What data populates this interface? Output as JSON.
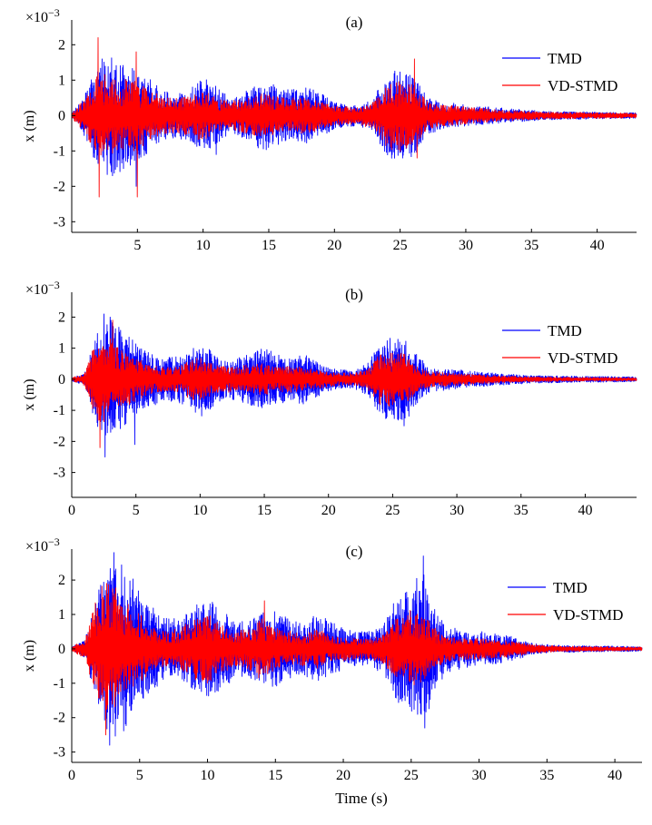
{
  "chart_data": [
    {
      "type": "line",
      "panel_label": "(a)",
      "exponent_label": "×10",
      "exponent_power": "−3",
      "xlabel": "",
      "ylabel": "x (m)",
      "xlim": [
        0,
        43
      ],
      "ylim": [
        -3.3,
        2.7
      ],
      "x_ticks": [
        5,
        10,
        15,
        20,
        25,
        30,
        35,
        40
      ],
      "y_ticks": [
        -3,
        -2,
        -1,
        0,
        1,
        2
      ],
      "legend_position": "top-right",
      "series": [
        {
          "name": "TMD",
          "color": "#0000ff",
          "envelope": [
            [
              0,
              0.05
            ],
            [
              1,
              0.6
            ],
            [
              2,
              1.5
            ],
            [
              3,
              1.7
            ],
            [
              4,
              1.5
            ],
            [
              5,
              1.3
            ],
            [
              6,
              1.0
            ],
            [
              7,
              0.7
            ],
            [
              8,
              0.6
            ],
            [
              9,
              0.8
            ],
            [
              10,
              1.1
            ],
            [
              11,
              0.8
            ],
            [
              12,
              0.5
            ],
            [
              13,
              0.6
            ],
            [
              14,
              0.9
            ],
            [
              15,
              1.0
            ],
            [
              16,
              0.8
            ],
            [
              17,
              0.7
            ],
            [
              18,
              0.8
            ],
            [
              19,
              0.6
            ],
            [
              20,
              0.4
            ],
            [
              21,
              0.3
            ],
            [
              22,
              0.3
            ],
            [
              23,
              0.5
            ],
            [
              24,
              1.2
            ],
            [
              25,
              1.3
            ],
            [
              26,
              1.2
            ],
            [
              27,
              0.6
            ],
            [
              28,
              0.4
            ],
            [
              30,
              0.3
            ],
            [
              33,
              0.2
            ],
            [
              36,
              0.12
            ],
            [
              40,
              0.1
            ],
            [
              43,
              0.08
            ]
          ],
          "peaks": [
            [
              2.3,
              1.6
            ],
            [
              3.1,
              -1.7
            ],
            [
              4.9,
              -2.0
            ],
            [
              11.0,
              -1.1
            ],
            [
              24.4,
              -1.1
            ],
            [
              25.6,
              1.1
            ]
          ]
        },
        {
          "name": "VD-STMD",
          "color": "#ff0000",
          "envelope": [
            [
              0,
              0.05
            ],
            [
              1,
              0.5
            ],
            [
              2,
              1.2
            ],
            [
              3,
              1.1
            ],
            [
              4,
              1.0
            ],
            [
              5,
              1.0
            ],
            [
              6,
              0.7
            ],
            [
              7,
              0.5
            ],
            [
              8,
              0.5
            ],
            [
              9,
              0.6
            ],
            [
              10,
              0.7
            ],
            [
              11,
              0.5
            ],
            [
              12,
              0.4
            ],
            [
              13,
              0.5
            ],
            [
              14,
              0.6
            ],
            [
              15,
              0.6
            ],
            [
              16,
              0.5
            ],
            [
              17,
              0.5
            ],
            [
              18,
              0.5
            ],
            [
              19,
              0.4
            ],
            [
              20,
              0.3
            ],
            [
              21,
              0.25
            ],
            [
              22,
              0.25
            ],
            [
              23,
              0.4
            ],
            [
              24,
              0.9
            ],
            [
              25,
              1.0
            ],
            [
              26,
              0.9
            ],
            [
              27,
              0.4
            ],
            [
              28,
              0.3
            ],
            [
              30,
              0.25
            ],
            [
              33,
              0.15
            ],
            [
              36,
              0.1
            ],
            [
              40,
              0.08
            ],
            [
              43,
              0.06
            ]
          ],
          "peaks": [
            [
              2.0,
              2.2
            ],
            [
              2.1,
              -2.3
            ],
            [
              4.9,
              1.8
            ],
            [
              5.0,
              -2.3
            ],
            [
              26.1,
              1.6
            ],
            [
              26.3,
              -1.2
            ]
          ]
        }
      ]
    },
    {
      "type": "line",
      "panel_label": "(b)",
      "exponent_label": "×10",
      "exponent_power": "−3",
      "xlabel": "",
      "ylabel": "x (m)",
      "xlim": [
        0,
        44
      ],
      "ylim": [
        -3.8,
        2.8
      ],
      "x_ticks": [
        0,
        5,
        10,
        15,
        20,
        25,
        30,
        35,
        40
      ],
      "y_ticks": [
        -3,
        -2,
        -1,
        0,
        1,
        2
      ],
      "legend_position": "top-right",
      "series": [
        {
          "name": "TMD",
          "color": "#0000ff",
          "envelope": [
            [
              0,
              0.05
            ],
            [
              1,
              0.2
            ],
            [
              2,
              1.6
            ],
            [
              3,
              1.9
            ],
            [
              4,
              1.6
            ],
            [
              5,
              1.2
            ],
            [
              6,
              0.9
            ],
            [
              7,
              0.7
            ],
            [
              8,
              0.7
            ],
            [
              9,
              0.9
            ],
            [
              10,
              1.2
            ],
            [
              11,
              0.9
            ],
            [
              12,
              0.6
            ],
            [
              13,
              0.7
            ],
            [
              14,
              0.9
            ],
            [
              15,
              1.0
            ],
            [
              16,
              0.8
            ],
            [
              17,
              0.7
            ],
            [
              18,
              0.8
            ],
            [
              19,
              0.6
            ],
            [
              20,
              0.4
            ],
            [
              21,
              0.3
            ],
            [
              22,
              0.3
            ],
            [
              23,
              0.5
            ],
            [
              24,
              1.2
            ],
            [
              25,
              1.3
            ],
            [
              26,
              1.4
            ],
            [
              27,
              0.7
            ],
            [
              28,
              0.4
            ],
            [
              30,
              0.3
            ],
            [
              33,
              0.2
            ],
            [
              36,
              0.12
            ],
            [
              40,
              0.1
            ],
            [
              44,
              0.08
            ]
          ],
          "peaks": [
            [
              2.5,
              2.1
            ],
            [
              3.0,
              2.0
            ],
            [
              2.6,
              -2.5
            ],
            [
              4.9,
              -2.1
            ],
            [
              25.9,
              2.0
            ],
            [
              25.9,
              -1.5
            ]
          ]
        },
        {
          "name": "VD-STMD",
          "color": "#ff0000",
          "envelope": [
            [
              0,
              0.05
            ],
            [
              1,
              0.2
            ],
            [
              2,
              1.4
            ],
            [
              3,
              1.3
            ],
            [
              4,
              0.9
            ],
            [
              5,
              0.7
            ],
            [
              6,
              0.5
            ],
            [
              7,
              0.4
            ],
            [
              8,
              0.4
            ],
            [
              9,
              0.6
            ],
            [
              10,
              0.7
            ],
            [
              11,
              0.5
            ],
            [
              12,
              0.4
            ],
            [
              13,
              0.4
            ],
            [
              14,
              0.5
            ],
            [
              15,
              0.5
            ],
            [
              16,
              0.4
            ],
            [
              17,
              0.4
            ],
            [
              18,
              0.4
            ],
            [
              19,
              0.3
            ],
            [
              20,
              0.25
            ],
            [
              21,
              0.2
            ],
            [
              22,
              0.2
            ],
            [
              23,
              0.3
            ],
            [
              24,
              0.8
            ],
            [
              25,
              0.9
            ],
            [
              26,
              0.8
            ],
            [
              27,
              0.35
            ],
            [
              28,
              0.25
            ],
            [
              30,
              0.2
            ],
            [
              33,
              0.12
            ],
            [
              36,
              0.08
            ],
            [
              40,
              0.06
            ],
            [
              44,
              0.05
            ]
          ],
          "peaks": [
            [
              2.2,
              -2.2
            ],
            [
              3.2,
              1.9
            ]
          ]
        }
      ]
    },
    {
      "type": "line",
      "panel_label": "(c)",
      "exponent_label": "×10",
      "exponent_power": "−3",
      "xlabel": "Time (s)",
      "ylabel": "x (m)",
      "xlim": [
        0,
        42
      ],
      "ylim": [
        -3.3,
        2.9
      ],
      "x_ticks": [
        0,
        5,
        10,
        15,
        20,
        25,
        30,
        35,
        40
      ],
      "y_ticks": [
        -3,
        -2,
        -1,
        0,
        1,
        2
      ],
      "legend_position": "top-right",
      "series": [
        {
          "name": "TMD",
          "color": "#0000ff",
          "envelope": [
            [
              0,
              0.05
            ],
            [
              1,
              0.3
            ],
            [
              2,
              1.8
            ],
            [
              3,
              2.6
            ],
            [
              4,
              2.3
            ],
            [
              5,
              1.7
            ],
            [
              6,
              1.2
            ],
            [
              7,
              0.9
            ],
            [
              8,
              0.9
            ],
            [
              9,
              1.2
            ],
            [
              10,
              1.5
            ],
            [
              11,
              1.2
            ],
            [
              12,
              0.8
            ],
            [
              13,
              0.8
            ],
            [
              14,
              1.1
            ],
            [
              15,
              1.1
            ],
            [
              16,
              0.9
            ],
            [
              17,
              0.8
            ],
            [
              18,
              1.0
            ],
            [
              19,
              0.8
            ],
            [
              20,
              0.6
            ],
            [
              21,
              0.5
            ],
            [
              22,
              0.5
            ],
            [
              23,
              0.8
            ],
            [
              24,
              1.5
            ],
            [
              25,
              1.8
            ],
            [
              26,
              2.3
            ],
            [
              27,
              1.0
            ],
            [
              28,
              0.6
            ],
            [
              30,
              0.5
            ],
            [
              32,
              0.4
            ],
            [
              34,
              0.15
            ],
            [
              36,
              0.1
            ],
            [
              40,
              0.08
            ],
            [
              42,
              0.07
            ]
          ],
          "peaks": [
            [
              3.1,
              2.8
            ],
            [
              2.8,
              -2.8
            ],
            [
              25.9,
              2.7
            ],
            [
              26.0,
              -2.3
            ]
          ]
        },
        {
          "name": "VD-STMD",
          "color": "#ff0000",
          "envelope": [
            [
              0,
              0.05
            ],
            [
              1,
              0.3
            ],
            [
              2,
              1.8
            ],
            [
              3,
              2.0
            ],
            [
              4,
              1.3
            ],
            [
              5,
              1.0
            ],
            [
              6,
              0.6
            ],
            [
              7,
              0.5
            ],
            [
              8,
              0.6
            ],
            [
              9,
              0.9
            ],
            [
              10,
              1.0
            ],
            [
              11,
              0.7
            ],
            [
              12,
              0.5
            ],
            [
              13,
              0.6
            ],
            [
              14,
              0.9
            ],
            [
              15,
              0.6
            ],
            [
              16,
              0.5
            ],
            [
              17,
              0.5
            ],
            [
              18,
              0.6
            ],
            [
              19,
              0.4
            ],
            [
              20,
              0.35
            ],
            [
              21,
              0.3
            ],
            [
              22,
              0.3
            ],
            [
              23,
              0.5
            ],
            [
              24,
              0.9
            ],
            [
              25,
              1.1
            ],
            [
              26,
              1.0
            ],
            [
              27,
              0.5
            ],
            [
              28,
              0.35
            ],
            [
              30,
              0.3
            ],
            [
              32,
              0.25
            ],
            [
              34,
              0.12
            ],
            [
              36,
              0.08
            ],
            [
              40,
              0.06
            ],
            [
              42,
              0.05
            ]
          ],
          "peaks": [
            [
              2.5,
              -2.5
            ],
            [
              14.2,
              1.4
            ]
          ]
        }
      ]
    }
  ]
}
